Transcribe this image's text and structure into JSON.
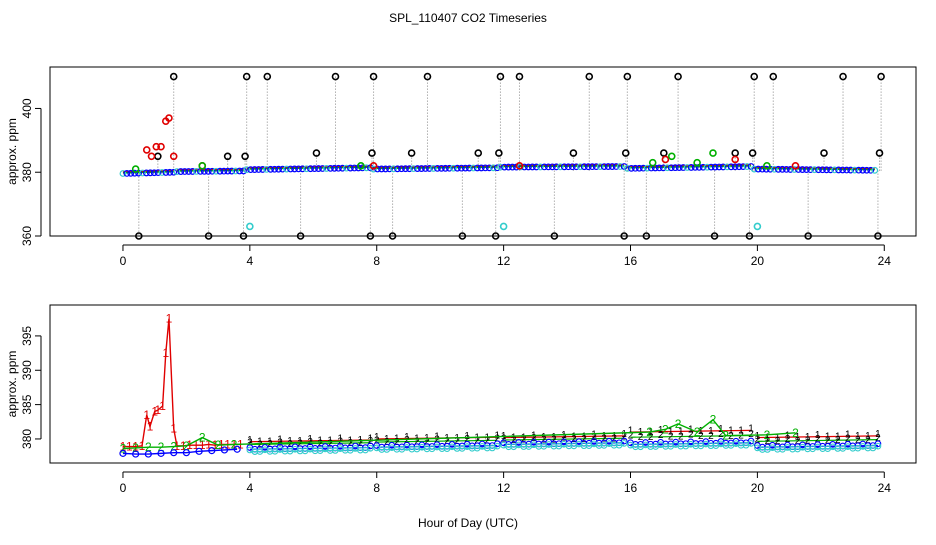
{
  "figure": {
    "title": "SPL_110407  CO2 Timeseries",
    "xlabel": "Hour of Day (UTC)"
  },
  "chart_data": [
    {
      "type": "scatter",
      "title": "SPL_110407  CO2 Timeseries",
      "xlabel": "",
      "ylabel": "approx. ppm",
      "xlim": [
        -2.3,
        25
      ],
      "ylim": [
        360,
        413
      ],
      "xticks": [
        0,
        4,
        8,
        12,
        16,
        20,
        24
      ],
      "yticks": [
        360,
        380,
        400
      ],
      "series": [
        {
          "name": "black",
          "color": "#000000",
          "style": "points",
          "x": [
            0.5,
            1.1,
            1.6,
            2.7,
            3.3,
            3.8,
            3.85,
            3.9,
            4.55,
            5.6,
            6.1,
            6.7,
            7.8,
            7.85,
            7.9,
            8.5,
            9.1,
            9.6,
            10.7,
            11.2,
            11.75,
            11.85,
            11.9,
            12.5,
            13.6,
            14.2,
            14.7,
            15.8,
            15.85,
            15.9,
            16.5,
            17.05,
            17.5,
            18.65,
            19.3,
            19.75,
            19.85,
            19.9,
            20.5,
            21.6,
            22.1,
            22.7,
            23.8,
            23.85,
            23.9
          ],
          "y": [
            360,
            385,
            410,
            360,
            385,
            360,
            385,
            410,
            410,
            360,
            386,
            410,
            360,
            386,
            410,
            360,
            386,
            410,
            360,
            386,
            360,
            386,
            410,
            410,
            360,
            386,
            410,
            360,
            386,
            410,
            360,
            386,
            410,
            360,
            386,
            360,
            386,
            410,
            410,
            360,
            386,
            410,
            360,
            386,
            410
          ]
        },
        {
          "name": "red",
          "color": "#e00000",
          "style": "points",
          "x": [
            0.75,
            0.9,
            1.05,
            1.2,
            1.35,
            1.45,
            1.6,
            2.5,
            7.9,
            12.5,
            17.1,
            19.3,
            21.2
          ],
          "y": [
            387,
            385,
            388,
            388,
            396,
            397,
            385,
            382,
            382,
            382,
            384,
            384,
            382
          ]
        },
        {
          "name": "green",
          "color": "#00b000",
          "style": "points",
          "x": [
            0.4,
            2.5,
            7.5,
            16.7,
            17.3,
            18.1,
            18.6,
            20.3
          ],
          "y": [
            381,
            382,
            382,
            383,
            385,
            383,
            386,
            382
          ]
        },
        {
          "name": "cyan",
          "color": "#33cccc",
          "style": "points",
          "x": [
            4.0,
            12.0,
            20.0
          ],
          "y": [
            363,
            363,
            363
          ]
        },
        {
          "name": "blue",
          "color": "#0000ff",
          "style": "segments-points",
          "segments": [
            {
              "x0": 0.0,
              "x1": 1.6,
              "y0": 379.6,
              "y1": 380.0
            },
            {
              "x0": 1.7,
              "x1": 3.8,
              "y0": 380.2,
              "y1": 380.4
            },
            {
              "x0": 3.9,
              "x1": 7.8,
              "y0": 380.8,
              "y1": 381.4
            },
            {
              "x0": 7.9,
              "x1": 11.8,
              "y0": 381.0,
              "y1": 381.4
            },
            {
              "x0": 11.9,
              "x1": 15.8,
              "y0": 381.6,
              "y1": 381.8
            },
            {
              "x0": 15.9,
              "x1": 19.8,
              "y0": 381.2,
              "y1": 381.8
            },
            {
              "x0": 19.9,
              "x1": 23.7,
              "y0": 381.0,
              "y1": 380.6
            }
          ]
        }
      ]
    },
    {
      "type": "line",
      "title": "",
      "xlabel": "Hour of Day (UTC)",
      "ylabel": "approx. ppm",
      "xlim": [
        -2.3,
        25
      ],
      "ylim": [
        376.5,
        399.5
      ],
      "xticks": [
        0,
        4,
        8,
        12,
        16,
        20,
        24
      ],
      "yticks": [
        380,
        385,
        390,
        395
      ],
      "series": [
        {
          "name": "1",
          "color": "#e00000",
          "marker": "1",
          "x": [
            0.0,
            0.2,
            0.4,
            0.6,
            0.75,
            0.85,
            1.0,
            1.1,
            1.25,
            1.35,
            1.45,
            1.6,
            1.7,
            1.9,
            2.1,
            2.3,
            2.5,
            2.7,
            2.9,
            3.1,
            3.3,
            3.5,
            3.7
          ],
          "y": [
            378.9,
            378.9,
            378.9,
            379.0,
            383.5,
            381.8,
            384.0,
            384.2,
            384.8,
            392.5,
            397.5,
            381.5,
            379.0,
            379.0,
            379.1,
            379.1,
            379.1,
            379.2,
            379.1,
            379.2,
            379.2,
            379.2,
            379.2
          ]
        },
        {
          "name": "2",
          "color": "#00b000",
          "marker": "2",
          "x": [
            0.0,
            0.4,
            0.8,
            1.2,
            1.6,
            2.0,
            2.5,
            3.0,
            3.5,
            16.6,
            17.1,
            17.5,
            18.1,
            18.6,
            19.0,
            20.3,
            21.2
          ],
          "y": [
            378.6,
            378.7,
            378.8,
            378.8,
            378.9,
            379.0,
            380.2,
            379.1,
            379.2,
            381.0,
            381.4,
            382.2,
            381.0,
            382.8,
            380.5,
            380.6,
            380.9
          ]
        },
        {
          "name": "3",
          "color": "#0000ff",
          "marker": "o",
          "x": [
            0.0,
            0.4,
            0.8,
            1.2,
            1.6,
            2.0,
            2.4,
            2.8,
            3.2,
            3.6
          ],
          "y": [
            377.9,
            377.8,
            377.8,
            377.9,
            378.0,
            378.0,
            378.2,
            378.3,
            378.4,
            378.5
          ]
        }
      ],
      "blocks": [
        {
          "x0": 4.0,
          "x1": 7.8,
          "y_low": 378.5,
          "y_high": 379.6
        },
        {
          "x0": 8.0,
          "x1": 11.8,
          "y_low": 378.8,
          "y_high": 380.0
        },
        {
          "x0": 12.0,
          "x1": 15.8,
          "y_low": 379.2,
          "y_high": 380.2
        },
        {
          "x0": 16.0,
          "x1": 19.8,
          "y_low": 379.2,
          "y_high": 381.0
        },
        {
          "x0": 20.0,
          "x1": 23.8,
          "y_low": 378.8,
          "y_high": 380.2
        }
      ]
    }
  ]
}
